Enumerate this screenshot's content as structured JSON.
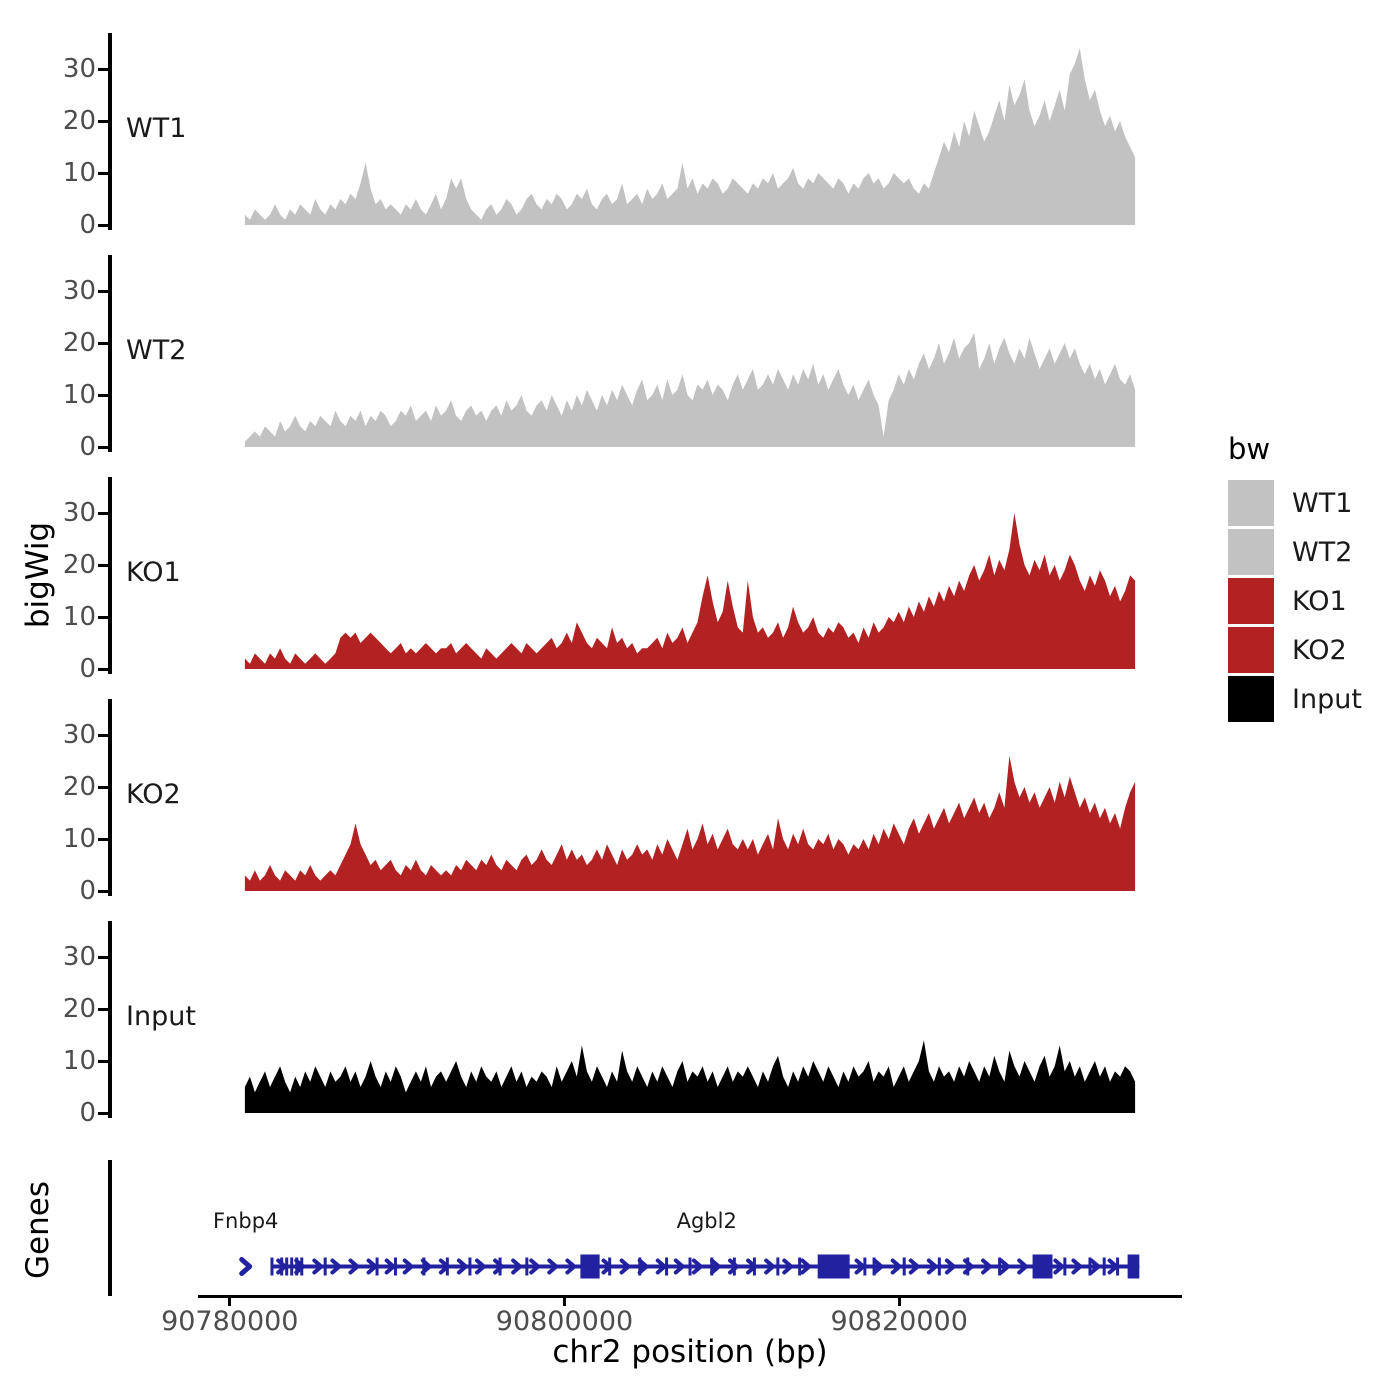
{
  "figure": {
    "y_axis_title": "bigWig",
    "genes_axis_title": "Genes",
    "x_axis_title": "chr2 position (bp)",
    "colors": {
      "wt_fill": "#c2c2c2",
      "ko_fill": "#b22222",
      "input_fill": "#000000",
      "gene_model": "#2222a0",
      "axis_line": "#000000",
      "tick_label": "#4d4d4d",
      "text": "#1a1a1a"
    }
  },
  "legend": {
    "title": "bw",
    "items": [
      {
        "label": "WT1",
        "color": "#c2c2c2"
      },
      {
        "label": "WT2",
        "color": "#c2c2c2"
      },
      {
        "label": "KO1",
        "color": "#b22222"
      },
      {
        "label": "KO2",
        "color": "#b22222"
      },
      {
        "label": "Input",
        "color": "#000000"
      }
    ]
  },
  "chart_data": {
    "type": "area",
    "title": "",
    "xlabel": "chr2 position (bp)",
    "ylabel": "bigWig",
    "x_unit": "bp",
    "chromosome": "chr2",
    "panel_bp_range": [
      90778100,
      90836900
    ],
    "data_bp_range": [
      90780900,
      90834100
    ],
    "x_ticks": [
      {
        "bp": 90780000,
        "label": "90780000"
      },
      {
        "bp": 90800000,
        "label": "90800000"
      },
      {
        "bp": 90820000,
        "label": "90820000"
      }
    ],
    "y_ticks": [
      0,
      10,
      20,
      30
    ],
    "ylim": [
      0,
      37
    ],
    "grid": false,
    "legend_position": "right",
    "tracks": [
      {
        "name": "WT1",
        "color": "#c2c2c2",
        "values": [
          2,
          1,
          3,
          2,
          1,
          2,
          4,
          2,
          1,
          3,
          2,
          4,
          3,
          2,
          5,
          3,
          2,
          4,
          3,
          5,
          4,
          6,
          5,
          8,
          12,
          7,
          4,
          5,
          3,
          4,
          3,
          2,
          4,
          3,
          5,
          3,
          2,
          4,
          6,
          3,
          5,
          9,
          7,
          9,
          5,
          3,
          2,
          1,
          3,
          4,
          2,
          3,
          5,
          4,
          2,
          3,
          5,
          6,
          4,
          3,
          5,
          4,
          6,
          5,
          3,
          4,
          6,
          5,
          7,
          4,
          3,
          5,
          6,
          4,
          5,
          8,
          4,
          5,
          6,
          4,
          7,
          5,
          6,
          8,
          5,
          6,
          7,
          12,
          7,
          9,
          6,
          8,
          7,
          9,
          8,
          6,
          7,
          9,
          8,
          7,
          6,
          8,
          7,
          9,
          8,
          10,
          7,
          8,
          9,
          11,
          8,
          7,
          9,
          8,
          10,
          9,
          8,
          7,
          9,
          8,
          6,
          8,
          7,
          9,
          10,
          8,
          9,
          7,
          8,
          10,
          9,
          8,
          9,
          7,
          6,
          8,
          7,
          10,
          13,
          16,
          14,
          18,
          15,
          20,
          17,
          22,
          19,
          16,
          18,
          21,
          24,
          20,
          27,
          23,
          25,
          28,
          22,
          19,
          21,
          24,
          20,
          23,
          26,
          22,
          29,
          31,
          34,
          28,
          24,
          26,
          22,
          19,
          21,
          18,
          20,
          17,
          15,
          13
        ]
      },
      {
        "name": "WT2",
        "color": "#c2c2c2",
        "values": [
          1,
          2,
          3,
          2,
          4,
          3,
          2,
          5,
          3,
          4,
          6,
          4,
          3,
          5,
          4,
          6,
          5,
          4,
          7,
          5,
          4,
          6,
          5,
          7,
          4,
          6,
          5,
          7,
          6,
          4,
          5,
          7,
          6,
          8,
          5,
          6,
          7,
          5,
          8,
          6,
          7,
          9,
          6,
          5,
          7,
          8,
          6,
          7,
          5,
          7,
          8,
          6,
          9,
          7,
          8,
          10,
          7,
          6,
          8,
          9,
          7,
          10,
          8,
          6,
          9,
          7,
          10,
          8,
          11,
          9,
          7,
          10,
          8,
          11,
          9,
          12,
          10,
          8,
          11,
          13,
          9,
          10,
          12,
          9,
          13,
          10,
          11,
          14,
          10,
          9,
          12,
          11,
          13,
          10,
          12,
          11,
          9,
          12,
          14,
          11,
          13,
          15,
          11,
          12,
          14,
          12,
          15,
          13,
          11,
          14,
          12,
          15,
          13,
          16,
          12,
          14,
          11,
          13,
          15,
          12,
          10,
          12,
          9,
          11,
          13,
          10,
          8,
          2,
          9,
          11,
          14,
          12,
          15,
          13,
          16,
          18,
          15,
          17,
          20,
          16,
          18,
          21,
          17,
          19,
          20,
          22,
          15,
          17,
          20,
          16,
          19,
          21,
          18,
          16,
          19,
          17,
          21,
          18,
          15,
          17,
          19,
          16,
          18,
          20,
          17,
          19,
          16,
          14,
          16,
          13,
          15,
          12,
          14,
          16,
          13,
          12,
          14,
          11
        ]
      },
      {
        "name": "KO1",
        "color": "#b22222",
        "values": [
          2,
          1,
          3,
          2,
          1,
          3,
          2,
          4,
          2,
          1,
          3,
          2,
          1,
          2,
          3,
          2,
          1,
          2,
          3,
          6,
          7,
          6,
          7,
          5,
          6,
          7,
          6,
          5,
          4,
          3,
          4,
          5,
          3,
          4,
          3,
          4,
          5,
          4,
          3,
          4,
          4,
          5,
          3,
          4,
          5,
          4,
          3,
          2,
          4,
          3,
          2,
          3,
          4,
          5,
          4,
          3,
          5,
          4,
          3,
          4,
          5,
          6,
          4,
          5,
          7,
          5,
          9,
          7,
          5,
          4,
          6,
          5,
          4,
          8,
          5,
          6,
          4,
          5,
          3,
          4,
          4,
          5,
          6,
          4,
          7,
          5,
          6,
          8,
          5,
          7,
          9,
          14,
          18,
          13,
          9,
          11,
          17,
          12,
          8,
          7,
          17,
          10,
          7,
          8,
          6,
          7,
          9,
          6,
          8,
          12,
          9,
          7,
          8,
          10,
          7,
          6,
          8,
          7,
          9,
          8,
          6,
          7,
          5,
          8,
          6,
          9,
          7,
          8,
          10,
          9,
          11,
          9,
          12,
          10,
          13,
          11,
          14,
          12,
          15,
          13,
          16,
          14,
          17,
          15,
          18,
          20,
          17,
          19,
          22,
          18,
          21,
          19,
          23,
          30,
          24,
          20,
          18,
          21,
          19,
          22,
          18,
          20,
          17,
          19,
          22,
          20,
          17,
          15,
          18,
          16,
          19,
          17,
          14,
          16,
          13,
          15,
          18,
          17
        ]
      },
      {
        "name": "KO2",
        "color": "#b22222",
        "values": [
          3,
          2,
          4,
          2,
          3,
          5,
          3,
          2,
          4,
          3,
          2,
          4,
          3,
          5,
          3,
          2,
          3,
          4,
          3,
          5,
          7,
          9,
          13,
          9,
          7,
          5,
          6,
          4,
          5,
          6,
          4,
          3,
          5,
          4,
          6,
          4,
          3,
          5,
          4,
          3,
          4,
          3,
          5,
          4,
          6,
          5,
          4,
          6,
          5,
          7,
          5,
          4,
          6,
          5,
          4,
          6,
          7,
          5,
          6,
          8,
          6,
          5,
          7,
          9,
          6,
          8,
          6,
          7,
          5,
          6,
          8,
          6,
          9,
          7,
          5,
          8,
          6,
          7,
          9,
          7,
          8,
          6,
          9,
          7,
          10,
          8,
          6,
          9,
          12,
          8,
          10,
          13,
          9,
          11,
          8,
          10,
          12,
          9,
          8,
          10,
          8,
          10,
          7,
          9,
          11,
          8,
          14,
          10,
          8,
          11,
          9,
          12,
          9,
          8,
          10,
          9,
          11,
          8,
          10,
          9,
          7,
          9,
          8,
          10,
          8,
          11,
          9,
          12,
          10,
          13,
          11,
          9,
          12,
          14,
          11,
          13,
          15,
          12,
          14,
          16,
          13,
          15,
          17,
          14,
          16,
          18,
          15,
          17,
          14,
          16,
          19,
          16,
          26,
          21,
          18,
          20,
          17,
          19,
          16,
          18,
          20,
          17,
          21,
          18,
          22,
          19,
          16,
          18,
          15,
          17,
          14,
          16,
          13,
          15,
          12,
          16,
          19,
          21
        ]
      },
      {
        "name": "Input",
        "color": "#000000",
        "values": [
          5,
          7,
          4,
          6,
          8,
          5,
          7,
          9,
          6,
          4,
          7,
          5,
          8,
          6,
          9,
          7,
          5,
          8,
          6,
          7,
          9,
          6,
          8,
          5,
          7,
          10,
          7,
          5,
          8,
          6,
          9,
          7,
          4,
          6,
          8,
          6,
          9,
          5,
          7,
          8,
          6,
          8,
          10,
          7,
          5,
          8,
          6,
          9,
          7,
          6,
          8,
          5,
          7,
          9,
          6,
          8,
          5,
          7,
          6,
          8,
          7,
          5,
          9,
          6,
          8,
          10,
          7,
          13,
          8,
          6,
          9,
          7,
          5,
          8,
          6,
          12,
          8,
          6,
          9,
          7,
          5,
          8,
          6,
          9,
          7,
          5,
          8,
          10,
          6,
          8,
          7,
          9,
          6,
          8,
          5,
          7,
          9,
          6,
          8,
          7,
          9,
          7,
          5,
          8,
          6,
          9,
          11,
          7,
          5,
          8,
          6,
          9,
          7,
          10,
          8,
          6,
          9,
          7,
          5,
          8,
          6,
          9,
          7,
          8,
          10,
          6,
          8,
          7,
          9,
          5,
          7,
          9,
          6,
          8,
          10,
          14,
          8,
          6,
          9,
          7,
          8,
          6,
          9,
          7,
          10,
          8,
          6,
          9,
          7,
          11,
          8,
          6,
          12,
          9,
          7,
          10,
          8,
          6,
          9,
          11,
          7,
          9,
          13,
          8,
          10,
          7,
          9,
          6,
          8,
          10,
          7,
          9,
          6,
          8,
          7,
          9,
          8,
          6
        ]
      }
    ],
    "genes": [
      {
        "name": "Fnbp4",
        "start": 90780650,
        "end": 90781250,
        "strand": "+",
        "label_anchor_bp": 90780950,
        "partial": true,
        "exon_ticks": [],
        "big_exons": []
      },
      {
        "name": "Agbl2",
        "start": 90782500,
        "end": 90834350,
        "strand": "+",
        "label_anchor_bp": 90808500,
        "partial": false,
        "exon_ticks": [
          90782520,
          90783100,
          90783400,
          90783700,
          90784000,
          90784300,
          90785700,
          90788800,
          90789900,
          90791600,
          90793000,
          90794350,
          90796150,
          90797750,
          90802700,
          90804500,
          90806100,
          90807500,
          90808800,
          90810150,
          90811350,
          90812750,
          90814050,
          90817950,
          90818500,
          90820300,
          90822400,
          90824100,
          90826000,
          90829900,
          90831400,
          90832250,
          90833050
        ],
        "big_exons": [
          [
            90800950,
            90802100
          ],
          [
            90815130,
            90817040
          ],
          [
            90827970,
            90829160
          ],
          [
            90833650,
            90834350
          ]
        ]
      }
    ]
  }
}
